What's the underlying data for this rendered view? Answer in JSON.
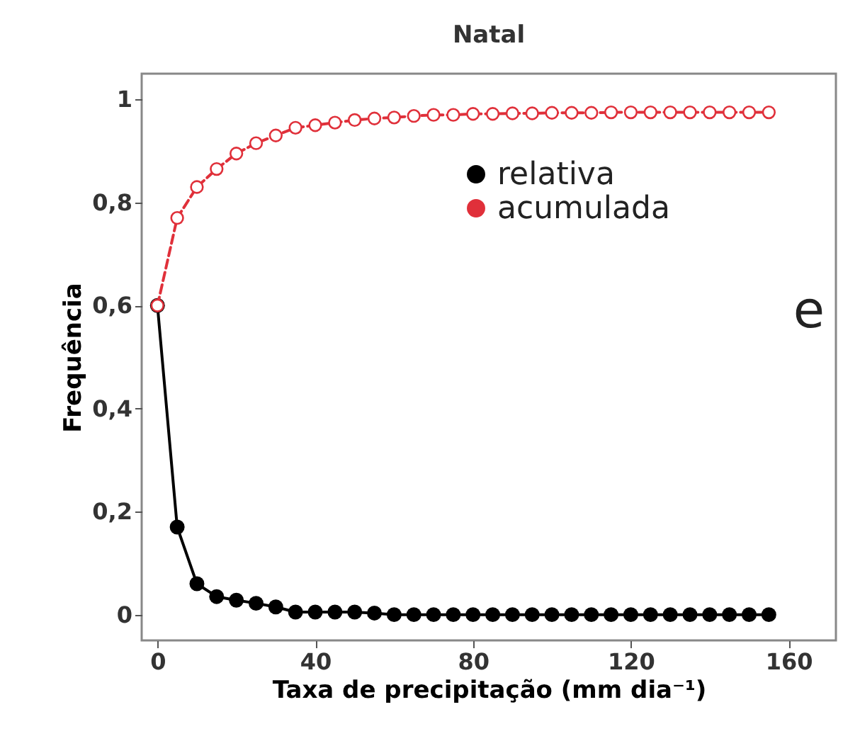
{
  "chart_data": {
    "type": "line",
    "title": "Natal",
    "xlabel": "Taxa de precipitação (mm dia⁻¹)",
    "ylabel": "Frequência",
    "x": [
      0,
      5,
      10,
      15,
      20,
      25,
      30,
      35,
      40,
      45,
      50,
      55,
      60,
      65,
      70,
      75,
      80,
      85,
      90,
      95,
      100,
      105,
      110,
      115,
      120,
      125,
      130,
      135,
      140,
      145,
      150,
      155
    ],
    "series": [
      {
        "name": "relativa",
        "color": "#000000",
        "marker": "circle",
        "line_style": "solid",
        "values": [
          0.6,
          0.17,
          0.06,
          0.035,
          0.028,
          0.022,
          0.015,
          0.005,
          0.005,
          0.005,
          0.005,
          0.003,
          0,
          0,
          0,
          0,
          0,
          0,
          0,
          0,
          0,
          0,
          0,
          0,
          0,
          0,
          0,
          0,
          0,
          0,
          0,
          0
        ]
      },
      {
        "name": "acumulada",
        "color": "#e0303a",
        "marker": "circle",
        "line_style": "dashed",
        "values": [
          0.6,
          0.77,
          0.83,
          0.865,
          0.895,
          0.915,
          0.93,
          0.945,
          0.95,
          0.955,
          0.96,
          0.963,
          0.965,
          0.968,
          0.97,
          0.97,
          0.972,
          0.972,
          0.973,
          0.973,
          0.974,
          0.974,
          0.974,
          0.975,
          0.975,
          0.975,
          0.975,
          0.975,
          0.975,
          0.975,
          0.975,
          0.975
        ]
      }
    ],
    "xlim": [
      -4,
      172
    ],
    "xticks": [
      0,
      40,
      80,
      120,
      160
    ],
    "ylim": [
      -0.05,
      1.05
    ],
    "yticks": [
      {
        "value": 0,
        "label": "0"
      },
      {
        "value": 0.2,
        "label": "0,2"
      },
      {
        "value": 0.4,
        "label": "0,4"
      },
      {
        "value": 0.6,
        "label": "0,6"
      },
      {
        "value": 0.8,
        "label": "0,8"
      },
      {
        "value": 1,
        "label": "1"
      }
    ],
    "legend": "top right",
    "grid": false,
    "annotations": [
      "e"
    ]
  }
}
